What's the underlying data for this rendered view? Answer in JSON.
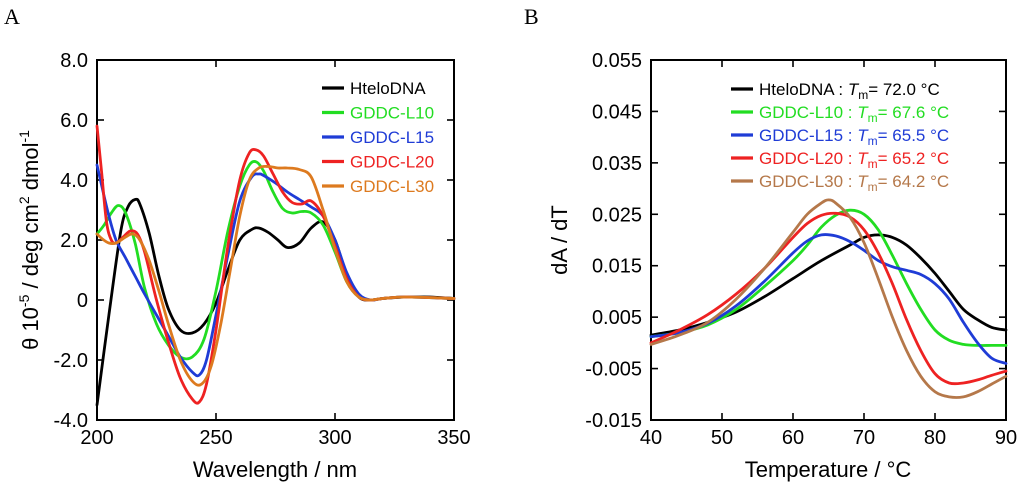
{
  "chart_data": [
    {
      "panel": "A",
      "type": "line",
      "xlabel": "Wavelength / nm",
      "ylabel": "θ 10^-5 / deg cm^2 dmol^-1",
      "ylabel_parts": {
        "base": "θ 10",
        "exp1": "-5",
        "mid": " / deg cm",
        "exp2": "2",
        "end": " dmol",
        "exp3": "-1"
      },
      "xlim": [
        200,
        350
      ],
      "ylim": [
        -4.0,
        8.0
      ],
      "xticks": [
        200,
        250,
        300,
        350
      ],
      "xtick_labels": [
        "200",
        "250",
        "300",
        "350"
      ],
      "yticks": [
        -4,
        -2,
        0,
        2,
        4,
        6,
        8
      ],
      "ytick_labels": [
        "-4.0",
        "-2.0",
        "0",
        "2.0",
        "4.0",
        "6.0",
        "8.0"
      ],
      "legend": "top-right",
      "series": [
        {
          "name": "HteloDNA",
          "color": "#000000",
          "x": [
            200,
            205,
            210,
            213,
            216,
            218,
            222,
            226,
            230,
            235,
            240,
            245,
            250,
            255,
            260,
            265,
            268,
            272,
            276,
            280,
            285,
            290,
            295,
            300,
            305,
            310,
            315,
            320,
            330,
            340,
            350
          ],
          "y": [
            -3.5,
            -0.5,
            2.3,
            3.1,
            3.35,
            3.2,
            2.2,
            0.8,
            -0.3,
            -1.0,
            -1.1,
            -0.8,
            -0.1,
            1.0,
            2.0,
            2.35,
            2.4,
            2.25,
            2.0,
            1.75,
            1.9,
            2.4,
            2.6,
            2.0,
            0.8,
            0.1,
            0.0,
            0.05,
            0.1,
            0.1,
            0.05
          ]
        },
        {
          "name": "GDDC-L10",
          "color": "#22dd22",
          "x": [
            200,
            203,
            206,
            209,
            212,
            216,
            220,
            225,
            230,
            235,
            240,
            245,
            250,
            255,
            260,
            264,
            267,
            270,
            274,
            278,
            282,
            286,
            290,
            295,
            300,
            305,
            310,
            315,
            320,
            330,
            350
          ],
          "y": [
            2.2,
            2.5,
            2.9,
            3.15,
            2.9,
            1.9,
            0.4,
            -0.8,
            -1.5,
            -1.9,
            -1.9,
            -1.3,
            0.3,
            2.3,
            3.8,
            4.5,
            4.6,
            4.3,
            3.6,
            3.05,
            2.9,
            2.95,
            2.9,
            2.5,
            1.6,
            0.6,
            0.1,
            0.0,
            0.05,
            0.1,
            0.05
          ]
        },
        {
          "name": "GDDC-L15",
          "color": "#1f3cd6",
          "x": [
            200,
            202,
            205,
            208,
            212,
            216,
            220,
            225,
            230,
            235,
            240,
            243,
            246,
            250,
            255,
            260,
            265,
            268,
            270,
            275,
            280,
            285,
            290,
            295,
            300,
            305,
            310,
            315,
            320,
            330,
            350
          ],
          "y": [
            4.5,
            3.8,
            2.8,
            2.0,
            1.4,
            0.8,
            0.2,
            -0.5,
            -1.2,
            -1.9,
            -2.4,
            -2.5,
            -2.0,
            -0.5,
            1.5,
            3.3,
            4.1,
            4.2,
            4.15,
            3.9,
            3.6,
            3.35,
            3.1,
            2.8,
            2.0,
            0.9,
            0.2,
            0.0,
            0.05,
            0.1,
            0.05
          ]
        },
        {
          "name": "GDDC-L20",
          "color": "#ee2222",
          "x": [
            200,
            202,
            204,
            206,
            208,
            211,
            214,
            217,
            220,
            225,
            230,
            235,
            240,
            243,
            246,
            250,
            255,
            260,
            264,
            267,
            270,
            274,
            278,
            282,
            286,
            290,
            295,
            300,
            305,
            310,
            315,
            320,
            330,
            350
          ],
          "y": [
            5.8,
            4.2,
            2.6,
            2.0,
            1.9,
            2.1,
            2.3,
            2.2,
            1.6,
            0.0,
            -1.4,
            -2.6,
            -3.3,
            -3.4,
            -2.8,
            -1.0,
            1.8,
            4.0,
            4.9,
            5.0,
            4.8,
            4.2,
            3.6,
            3.25,
            3.2,
            3.3,
            2.8,
            1.8,
            0.7,
            0.1,
            0.0,
            0.05,
            0.1,
            0.05
          ]
        },
        {
          "name": "GDDC-L30",
          "color": "#dd7a1f",
          "x": [
            200,
            202,
            205,
            208,
            212,
            215,
            218,
            222,
            226,
            230,
            235,
            240,
            244,
            248,
            252,
            256,
            260,
            264,
            268,
            272,
            276,
            280,
            285,
            290,
            295,
            300,
            305,
            310,
            315,
            320,
            330,
            350
          ],
          "y": [
            2.2,
            2.05,
            1.9,
            1.9,
            2.1,
            2.2,
            2.0,
            1.3,
            0.3,
            -0.8,
            -2.0,
            -2.7,
            -2.8,
            -2.2,
            -0.8,
            1.0,
            2.8,
            4.0,
            4.4,
            4.45,
            4.4,
            4.4,
            4.35,
            4.1,
            3.0,
            1.7,
            0.6,
            0.1,
            0.0,
            0.05,
            0.1,
            0.05
          ]
        }
      ]
    },
    {
      "panel": "B",
      "type": "line",
      "xlabel": "Temperature / °C",
      "ylabel": "dA / dT",
      "xlim": [
        40,
        90
      ],
      "ylim": [
        -0.015,
        0.055
      ],
      "xticks": [
        40,
        50,
        60,
        70,
        80,
        90
      ],
      "xtick_labels": [
        "40",
        "50",
        "60",
        "70",
        "80",
        "90"
      ],
      "yticks": [
        -0.015,
        -0.005,
        0.005,
        0.015,
        0.025,
        0.035,
        0.045,
        0.055
      ],
      "ytick_labels": [
        "-0.015",
        "-0.005",
        "0.005",
        "0.015",
        "0.025",
        "0.035",
        "0.045",
        "0.055"
      ],
      "legend": "top-right",
      "tm_prefix": "T",
      "tm_sub": "m",
      "series": [
        {
          "name": "HteloDNA : ",
          "tm": "= 72.0 °C",
          "color": "#000000",
          "x": [
            40,
            44,
            48,
            52,
            56,
            60,
            64,
            68,
            70,
            72,
            74,
            76,
            78,
            80,
            82,
            84,
            86,
            88,
            90
          ],
          "y": [
            0.0015,
            0.0025,
            0.004,
            0.006,
            0.009,
            0.0125,
            0.016,
            0.019,
            0.0205,
            0.021,
            0.0205,
            0.019,
            0.0165,
            0.0135,
            0.01,
            0.0065,
            0.0045,
            0.003,
            0.0025
          ]
        },
        {
          "name": "GDDC-L10 : ",
          "tm": "= 67.6 °C",
          "color": "#22dd22",
          "x": [
            40,
            44,
            48,
            52,
            56,
            60,
            62,
            64,
            66,
            68,
            70,
            72,
            74,
            76,
            78,
            80,
            82,
            84,
            86,
            88,
            90
          ],
          "y": [
            0.0012,
            0.002,
            0.0035,
            0.0065,
            0.011,
            0.016,
            0.019,
            0.0225,
            0.0248,
            0.0258,
            0.025,
            0.022,
            0.017,
            0.0115,
            0.0065,
            0.0025,
            0.0005,
            -0.0003,
            -0.0005,
            -0.0005,
            -0.0005
          ]
        },
        {
          "name": "GDDC-L15 : ",
          "tm": "= 65.5 °C",
          "color": "#1f3cd6",
          "x": [
            40,
            44,
            48,
            52,
            56,
            60,
            62,
            64,
            66,
            68,
            70,
            72,
            74,
            76,
            78,
            80,
            82,
            84,
            86,
            88,
            90
          ],
          "y": [
            0.0012,
            0.002,
            0.0038,
            0.0072,
            0.012,
            0.0175,
            0.0198,
            0.021,
            0.0208,
            0.0197,
            0.018,
            0.016,
            0.0148,
            0.0141,
            0.0133,
            0.0115,
            0.0085,
            0.004,
            0.0,
            -0.003,
            -0.004
          ]
        },
        {
          "name": "GDDC-L20 : ",
          "tm": "= 65.2 °C",
          "color": "#ee2222",
          "x": [
            40,
            44,
            48,
            52,
            56,
            60,
            62,
            64,
            66,
            68,
            70,
            72,
            74,
            76,
            78,
            80,
            82,
            84,
            86,
            88,
            90
          ],
          "y": [
            0.0,
            0.0025,
            0.0055,
            0.0095,
            0.0145,
            0.0205,
            0.0232,
            0.0248,
            0.0252,
            0.0245,
            0.022,
            0.0175,
            0.0115,
            0.0045,
            -0.0015,
            -0.006,
            -0.0078,
            -0.0078,
            -0.0072,
            -0.0063,
            -0.0055
          ]
        },
        {
          "name": "GDDC-L30 : ",
          "tm": "= 64.2 °C",
          "color": "#b5784a",
          "x": [
            40,
            44,
            48,
            52,
            56,
            60,
            62,
            64,
            65,
            66,
            68,
            70,
            72,
            74,
            76,
            78,
            80,
            82,
            84,
            86,
            88,
            90
          ],
          "y": [
            -0.0003,
            0.0015,
            0.004,
            0.0085,
            0.0145,
            0.0215,
            0.025,
            0.0272,
            0.0278,
            0.0272,
            0.0245,
            0.0195,
            0.0125,
            0.005,
            -0.0015,
            -0.0065,
            -0.0095,
            -0.0105,
            -0.0105,
            -0.0095,
            -0.008,
            -0.0065
          ]
        }
      ]
    }
  ]
}
